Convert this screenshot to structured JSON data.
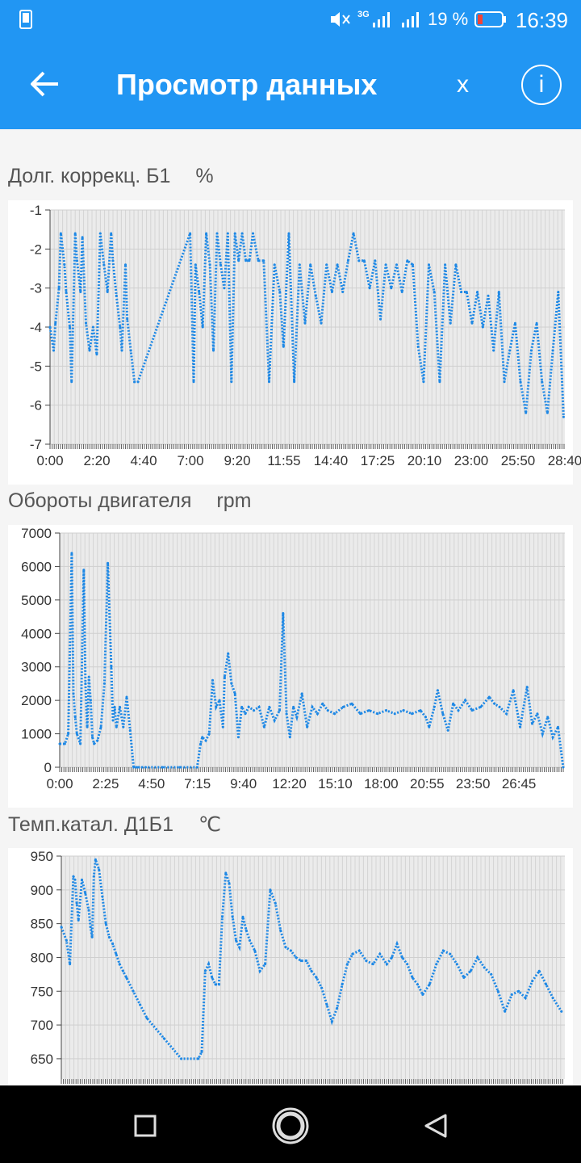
{
  "status_bar": {
    "network": "3G",
    "battery_percent": "19 %",
    "time": "16:39",
    "icons": [
      "phone-icon",
      "mute-icon",
      "signal-icon",
      "battery-icon"
    ]
  },
  "app_bar": {
    "title": "Просмотр данных",
    "close_label": "x",
    "info_label": "i",
    "back_icon": "arrow-left-icon",
    "info_icon": "info-icon"
  },
  "colors": {
    "accent": "#2196f3",
    "series": "#1e88e5",
    "plot_bg": "#ebebeb",
    "grid": "#d4d4d4"
  },
  "chart_data": [
    {
      "type": "line",
      "title": "Долг. коррекц. Б1",
      "unit": "%",
      "ylim": [
        -7,
        -1
      ],
      "yticks": [
        "-1",
        "-2",
        "-3",
        "-4",
        "-5",
        "-6",
        "-7"
      ],
      "xticks": [
        "0:00",
        "2:20",
        "4:40",
        "7:00",
        "9:20",
        "11:55",
        "14:40",
        "17:25",
        "20:10",
        "23:00",
        "25:50",
        "28:40"
      ],
      "xlim": [
        0,
        28.67
      ],
      "x": [
        0.0,
        0.2,
        0.3,
        0.5,
        0.6,
        0.8,
        0.9,
        1.1,
        1.2,
        1.4,
        1.5,
        1.7,
        1.8,
        2.0,
        2.2,
        2.4,
        2.6,
        2.8,
        3.0,
        3.2,
        3.4,
        3.5,
        3.7,
        3.9,
        4.0,
        4.2,
        4.3,
        4.5,
        4.7,
        4.9,
        7.8,
        8.0,
        8.1,
        8.3,
        8.5,
        8.7,
        8.9,
        9.1,
        9.3,
        9.5,
        9.7,
        9.9,
        10.1,
        10.3,
        10.5,
        10.7,
        10.9,
        11.1,
        11.3,
        11.6,
        11.9,
        12.2,
        12.5,
        12.8,
        13.0,
        13.3,
        13.6,
        13.9,
        14.2,
        14.5,
        14.8,
        15.1,
        15.4,
        15.7,
        16.0,
        16.3,
        16.6,
        16.9,
        17.2,
        17.5,
        17.8,
        18.1,
        18.4,
        18.7,
        19.0,
        19.3,
        19.6,
        19.9,
        20.2,
        20.5,
        20.8,
        21.1,
        21.4,
        21.7,
        22.0,
        22.3,
        22.6,
        22.9,
        23.2,
        23.5,
        23.8,
        24.1,
        24.4,
        24.7,
        25.0,
        25.3,
        25.6,
        25.9,
        26.2,
        26.5,
        26.8,
        27.1,
        27.4,
        27.7,
        28.0,
        28.3,
        28.6
      ],
      "y": [
        -4.0,
        -4.6,
        -3.9,
        -3.0,
        -1.6,
        -2.4,
        -3.1,
        -4.0,
        -5.4,
        -1.6,
        -2.3,
        -3.1,
        -1.7,
        -3.9,
        -4.6,
        -4.0,
        -4.7,
        -1.6,
        -2.4,
        -3.1,
        -1.6,
        -2.3,
        -3.2,
        -4.0,
        -4.6,
        -2.4,
        -3.8,
        -4.6,
        -5.4,
        -5.4,
        -1.6,
        -5.4,
        -2.4,
        -3.1,
        -4.0,
        -1.6,
        -2.4,
        -4.6,
        -1.6,
        -2.4,
        -3.0,
        -1.6,
        -5.4,
        -1.6,
        -2.3,
        -1.6,
        -2.3,
        -2.3,
        -1.6,
        -2.3,
        -2.3,
        -5.4,
        -2.4,
        -3.1,
        -4.5,
        -1.6,
        -5.4,
        -2.4,
        -3.9,
        -2.4,
        -3.2,
        -3.9,
        -2.4,
        -3.1,
        -2.4,
        -3.1,
        -2.3,
        -1.6,
        -2.3,
        -2.3,
        -3.0,
        -2.3,
        -3.8,
        -2.4,
        -3.0,
        -2.4,
        -3.1,
        -2.3,
        -2.4,
        -4.5,
        -5.4,
        -2.4,
        -3.1,
        -5.4,
        -2.4,
        -3.9,
        -2.4,
        -3.1,
        -3.1,
        -3.9,
        -3.1,
        -4.0,
        -3.2,
        -4.6,
        -3.1,
        -5.4,
        -4.6,
        -3.9,
        -5.4,
        -6.2,
        -4.6,
        -3.9,
        -5.4,
        -6.2,
        -4.6,
        -3.1,
        -6.3
      ]
    },
    {
      "type": "line",
      "title": "Обороты двигателя",
      "unit": "rpm",
      "ylim": [
        0,
        7000
      ],
      "yticks": [
        "0",
        "1000",
        "2000",
        "3000",
        "4000",
        "5000",
        "6000",
        "7000"
      ],
      "xticks": [
        "0:00",
        "2:25",
        "4:50",
        "7:15",
        "9:40",
        "12:20",
        "15:10",
        "18:00",
        "20:55",
        "23:50",
        "26:45"
      ],
      "xlim": [
        0,
        29.4
      ],
      "x": [
        0.0,
        0.3,
        0.5,
        0.7,
        0.8,
        0.9,
        1.0,
        1.2,
        1.4,
        1.5,
        1.6,
        1.7,
        1.8,
        1.9,
        2.0,
        2.2,
        2.4,
        2.6,
        2.8,
        3.0,
        3.1,
        3.2,
        3.3,
        3.5,
        3.7,
        3.9,
        4.1,
        4.3,
        4.5,
        4.6,
        4.8,
        5.0,
        6.0,
        7.0,
        8.0,
        8.2,
        8.3,
        8.5,
        8.7,
        8.9,
        9.1,
        9.3,
        9.5,
        9.6,
        9.8,
        10.0,
        10.2,
        10.4,
        10.6,
        10.8,
        11.0,
        11.3,
        11.6,
        11.9,
        12.2,
        12.5,
        12.8,
        13.0,
        13.2,
        13.4,
        13.6,
        13.8,
        14.1,
        14.4,
        14.7,
        15.0,
        15.3,
        15.6,
        16.0,
        16.5,
        17.0,
        17.5,
        18.0,
        18.5,
        19.0,
        19.5,
        20.0,
        20.5,
        21.0,
        21.3,
        21.5,
        21.8,
        22.0,
        22.3,
        22.6,
        22.9,
        23.2,
        23.6,
        24.0,
        24.5,
        25.0,
        25.3,
        25.6,
        26.0,
        26.4,
        26.8,
        27.2,
        27.5,
        27.8,
        28.1,
        28.4,
        28.7,
        29.0,
        29.3
      ],
      "y": [
        700,
        700,
        1000,
        6400,
        2200,
        1500,
        1000,
        700,
        5900,
        2500,
        1200,
        2700,
        2000,
        900,
        700,
        800,
        1200,
        2500,
        6100,
        3000,
        1400,
        1800,
        1200,
        1800,
        1200,
        2100,
        1100,
        0,
        0,
        0,
        0,
        0,
        0,
        0,
        0,
        700,
        900,
        800,
        1000,
        2600,
        1800,
        2000,
        1200,
        2700,
        3400,
        2500,
        2200,
        900,
        1800,
        1600,
        1800,
        1700,
        1800,
        1200,
        1800,
        1400,
        1700,
        4600,
        1600,
        900,
        1800,
        1500,
        2200,
        1200,
        1800,
        1600,
        1900,
        1700,
        1600,
        1800,
        1900,
        1600,
        1700,
        1600,
        1700,
        1600,
        1700,
        1600,
        1700,
        1500,
        1200,
        1800,
        2300,
        1600,
        1100,
        1900,
        1700,
        2000,
        1700,
        1800,
        2100,
        1900,
        1800,
        1600,
        2300,
        1200,
        2400,
        1300,
        1600,
        1000,
        1500,
        900,
        1200,
        0
      ]
    },
    {
      "type": "line",
      "title": "Темп.катал. Д1Б1",
      "unit": "℃",
      "ylim": [
        620,
        950
      ],
      "yticks": [
        "650",
        "700",
        "750",
        "800",
        "850",
        "900",
        "950"
      ],
      "xticks": [],
      "xlim": [
        0,
        29.4
      ],
      "x": [
        0.0,
        0.3,
        0.5,
        0.7,
        0.8,
        0.9,
        1.0,
        1.2,
        1.4,
        1.6,
        1.7,
        1.8,
        1.9,
        2.0,
        2.2,
        2.4,
        2.6,
        2.8,
        3.0,
        3.2,
        3.4,
        3.6,
        3.8,
        4.2,
        4.6,
        5.0,
        6.0,
        7.0,
        8.0,
        8.2,
        8.4,
        8.6,
        8.8,
        9.0,
        9.2,
        9.4,
        9.6,
        9.8,
        10.0,
        10.2,
        10.4,
        10.6,
        10.8,
        11.0,
        11.3,
        11.6,
        11.9,
        12.2,
        12.5,
        12.8,
        13.1,
        13.4,
        13.7,
        14.0,
        14.3,
        14.6,
        14.9,
        15.2,
        15.5,
        15.8,
        16.1,
        16.4,
        16.7,
        17.0,
        17.4,
        17.8,
        18.2,
        18.6,
        19.0,
        19.3,
        19.6,
        19.9,
        20.2,
        20.5,
        20.8,
        21.1,
        21.5,
        21.9,
        22.3,
        22.7,
        23.1,
        23.5,
        23.9,
        24.3,
        24.7,
        25.1,
        25.5,
        25.9,
        26.3,
        26.7,
        27.1,
        27.5,
        27.9,
        28.3,
        28.7,
        29.2
      ],
      "y": [
        845,
        825,
        790,
        920,
        915,
        880,
        855,
        915,
        895,
        870,
        845,
        830,
        920,
        945,
        930,
        890,
        850,
        830,
        820,
        805,
        790,
        780,
        770,
        750,
        730,
        710,
        680,
        650,
        650,
        660,
        780,
        790,
        770,
        760,
        760,
        860,
        925,
        910,
        860,
        825,
        815,
        860,
        840,
        825,
        810,
        780,
        790,
        900,
        880,
        840,
        815,
        810,
        800,
        795,
        795,
        780,
        770,
        755,
        730,
        705,
        725,
        760,
        790,
        805,
        810,
        795,
        790,
        805,
        790,
        800,
        820,
        800,
        790,
        770,
        760,
        745,
        760,
        790,
        810,
        805,
        790,
        770,
        780,
        800,
        785,
        775,
        750,
        720,
        745,
        750,
        740,
        765,
        780,
        760,
        740,
        720
      ]
    }
  ],
  "nav_bar": {
    "icons": [
      "recents-icon",
      "home-icon",
      "back-icon"
    ]
  }
}
